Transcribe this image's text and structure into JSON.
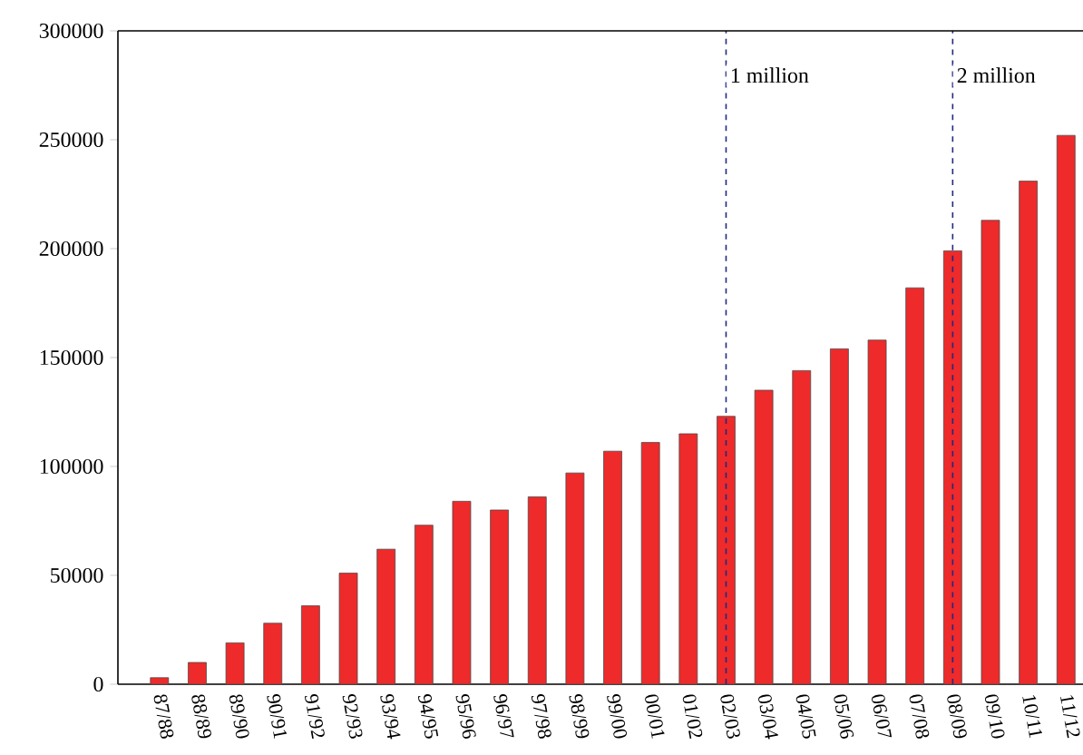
{
  "chart_data": {
    "type": "bar",
    "categories": [
      "87/88",
      "88/89",
      "89/90",
      "90/91",
      "91/92",
      "92/93",
      "93/94",
      "94/95",
      "95/96",
      "96/97",
      "97/98",
      "98/99",
      "99/00",
      "00/01",
      "01/02",
      "02/03",
      "03/04",
      "04/05",
      "05/06",
      "06/07",
      "07/08",
      "08/09",
      "09/10",
      "10/11",
      "11/12"
    ],
    "values": [
      3000,
      10000,
      19000,
      28000,
      36000,
      51000,
      62000,
      73000,
      84000,
      80000,
      86000,
      97000,
      107000,
      111000,
      115000,
      123000,
      135000,
      144000,
      154000,
      158000,
      182000,
      199000,
      213000,
      231000,
      252000
    ],
    "color": "#ee2a2a",
    "ylim": [
      0,
      300000
    ],
    "yticks": [
      0,
      50000,
      100000,
      150000,
      200000,
      250000,
      300000
    ],
    "ref_lines": [
      {
        "axis": "x",
        "value": "02/03",
        "label": "1 million",
        "color": "#1f2a80",
        "line_style": "dashed"
      },
      {
        "axis": "x",
        "value": "08/09",
        "label": "2 million",
        "color": "#1f2a80",
        "line_style": "dashed"
      }
    ],
    "grid": false
  }
}
